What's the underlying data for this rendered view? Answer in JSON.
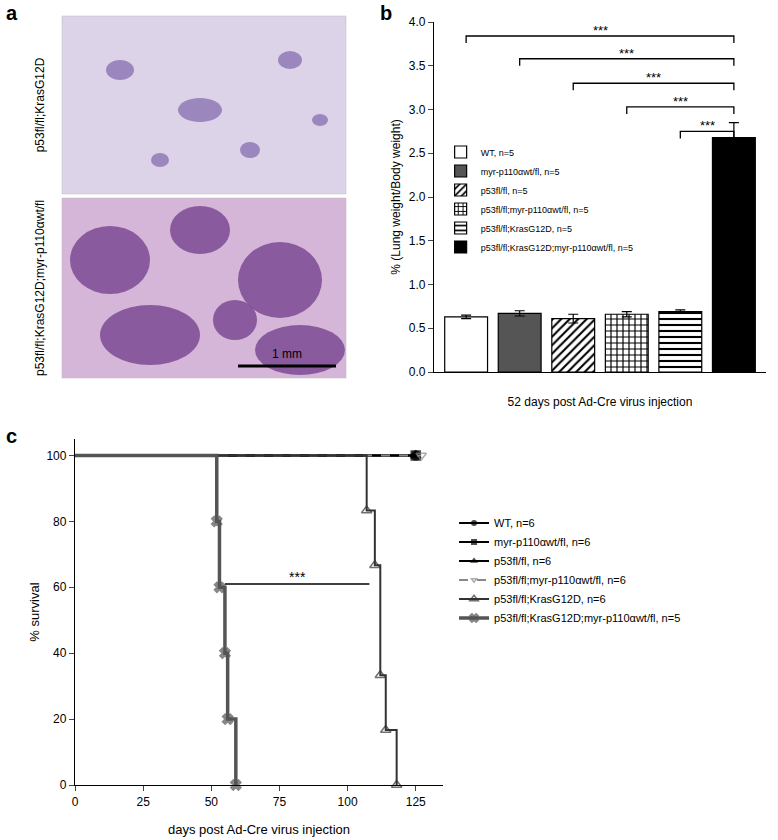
{
  "panel_labels": [
    "a",
    "b",
    "c"
  ],
  "images": {
    "rows": [
      {
        "label": "p53fl/fl;KrasG12D"
      },
      {
        "label": "p53fl/fl;KrasG12D;myr-p110αwt/fl"
      }
    ],
    "scale_bar": "1 mm"
  },
  "chart_data": [
    {
      "type": "bar",
      "xlabel": "52 days post Ad-Cre virus injection",
      "ylabel": "% (Lung weight/Body weight)",
      "ylim": [
        0,
        4
      ],
      "yticks": [
        {
          "value": 0,
          "label": "0.0"
        },
        {
          "value": 0.5,
          "label": "0.5"
        },
        {
          "value": 1,
          "label": "1.0"
        },
        {
          "value": 1.5,
          "label": "1.5"
        },
        {
          "value": 2,
          "label": "2.0"
        },
        {
          "value": 2.5,
          "label": "2.5"
        },
        {
          "value": 3,
          "label": "3.0"
        },
        {
          "value": 3.5,
          "label": "3.5"
        },
        {
          "value": 4,
          "label": "4.0"
        }
      ],
      "grid": false,
      "legend": "upper left",
      "tick_labels": "y",
      "series": [
        {
          "name": "WT, n=5",
          "color": "#ffffff",
          "marker": "solid",
          "values": [
            0.63
          ],
          "errors": [
            0.02
          ]
        },
        {
          "name": "myr-p110αwt/fl, n=5",
          "color": "#555555",
          "marker": "solid",
          "values": [
            0.67
          ],
          "errors": [
            0.03
          ]
        },
        {
          "name": "p53fl/fl, n=5",
          "color": "#000000",
          "marker": "diagonal",
          "values": [
            0.61
          ],
          "errors": [
            0.05
          ]
        },
        {
          "name": "p53fl/fl;myr-p110αwt/fl, n=5",
          "color": "#000000",
          "marker": "checker",
          "values": [
            0.66
          ],
          "errors": [
            0.03
          ]
        },
        {
          "name": "p53fl/fl;KrasG12D, n=5",
          "color": "#000000",
          "marker": "horizontal",
          "values": [
            0.69
          ],
          "errors": [
            0.02
          ]
        },
        {
          "name": "p53fl/fl;KrasG12D;myr-p110αwt/fl, n=5",
          "color": "#000000",
          "marker": "solid",
          "values": [
            2.68
          ],
          "errors": [
            0.17
          ]
        }
      ],
      "annotations": [
        {
          "text": "***",
          "from": 0,
          "to": 5,
          "y": 3.84
        },
        {
          "text": "***",
          "from": 1,
          "to": 5,
          "y": 3.58
        },
        {
          "text": "***",
          "from": 2,
          "to": 5,
          "y": 3.3
        },
        {
          "text": "***",
          "from": 3,
          "to": 5,
          "y": 3.03
        },
        {
          "text": "***",
          "from": 4,
          "to": 5,
          "y": 2.75
        }
      ]
    },
    {
      "type": "step",
      "xlabel": "days post Ad-Cre virus injection",
      "ylabel": "% survival",
      "xlim": [
        0,
        135
      ],
      "xticks": [
        0,
        25,
        50,
        75,
        100,
        125
      ],
      "ylim": [
        0,
        105
      ],
      "yticks": [
        0,
        20,
        40,
        60,
        80,
        100
      ],
      "grid": false,
      "legend": "right",
      "series": [
        {
          "name": "WT, n=6",
          "color": "#000000",
          "marker": "circle",
          "line_style": "solid",
          "x": [
            0,
            125
          ],
          "values": [
            100,
            100
          ]
        },
        {
          "name": "myr-p110αwt/fl, n=6",
          "color": "#000000",
          "marker": "square",
          "line_style": "solid",
          "x": [
            0,
            125
          ],
          "values": [
            100,
            100
          ]
        },
        {
          "name": "p53fl/fl, n=6",
          "color": "#000000",
          "marker": "triangle-up",
          "line_style": "solid",
          "x": [
            0,
            125
          ],
          "values": [
            100,
            100
          ]
        },
        {
          "name": "p53fl/fl;myr-p110αwt/fl, n=6",
          "color": "#888888",
          "marker": "triangle-down-open",
          "line_style": "dash",
          "x": [
            0,
            127
          ],
          "values": [
            100,
            100
          ]
        },
        {
          "name": "p53fl/fl;KrasG12D, n=6",
          "color": "#333333",
          "marker": "triangle-up-open",
          "line_style": "solid",
          "x": [
            0,
            107,
            110,
            112,
            114,
            118
          ],
          "values": [
            100,
            83.3,
            66.7,
            33.3,
            16.7,
            0
          ]
        },
        {
          "name": "p53fl/fl;KrasG12D;myr-p110αwt/fl, n=5",
          "color": "#555555",
          "marker": "x",
          "line_style": "solid",
          "x": [
            0,
            52,
            53,
            55,
            56,
            59
          ],
          "values": [
            100,
            80,
            60,
            40,
            20,
            0
          ]
        }
      ],
      "annotations": [
        {
          "text": "***",
          "x0": 55,
          "x1": 108,
          "y": 61
        }
      ]
    }
  ]
}
